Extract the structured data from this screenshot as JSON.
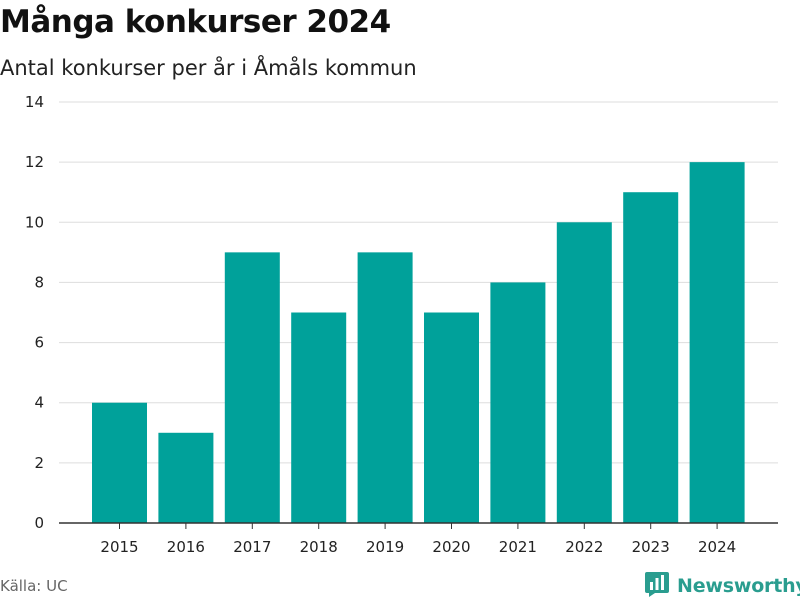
{
  "header": {
    "title": "Många konkurser 2024",
    "subtitle": "Antal konkurser per år i Åmåls kommun"
  },
  "footer": {
    "source": "Källa: UC",
    "brand_name": "Newsworthy",
    "brand_icon": "bar-chart-logo-icon"
  },
  "colors": {
    "bar": "#00a19a",
    "grid": "#dddddd",
    "axis": "#333333",
    "brand": "#2a9d8f"
  },
  "chart_data": {
    "type": "bar",
    "title": "Många konkurser 2024",
    "subtitle": "Antal konkurser per år i Åmåls kommun",
    "categories": [
      "2015",
      "2016",
      "2017",
      "2018",
      "2019",
      "2020",
      "2021",
      "2022",
      "2023",
      "2024"
    ],
    "values": [
      4,
      3,
      9,
      7,
      9,
      7,
      8,
      10,
      11,
      12
    ],
    "xlabel": "",
    "ylabel": "",
    "ylim": [
      0,
      14
    ],
    "yticks": [
      0,
      2,
      4,
      6,
      8,
      10,
      12,
      14
    ],
    "grid": true,
    "legend": "none"
  }
}
